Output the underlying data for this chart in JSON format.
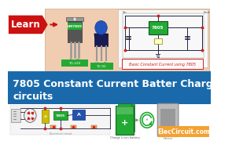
{
  "bg_color": "#ffffff",
  "top_panel_bg": "#f0ccb0",
  "title_bar_bg": "#1a6aab",
  "title_text_line1": "7805 Constant Current Batter Charger",
  "title_text_line2": "circuits",
  "title_color": "#ffffff",
  "title_fontsize": 9.0,
  "learn_label": "Learn",
  "learn_bg": "#cc1111",
  "learn_text_color": "#ffffff",
  "learn_fontsize": 8.5,
  "brand_text": "ElecCircuit.com",
  "brand_bg": "#f5a030",
  "brand_text_color": "#ffffff",
  "brand_fontsize": 5.5,
  "circuit_label_7805": "Basic Constant Current using 7805",
  "circuit_label_color": "#cc2222",
  "ic_green": "#22aa33",
  "wire_color": "#222244",
  "red_dot": "#cc2222",
  "transistor_dark": "#444444",
  "transistor_blue": "#2244bb",
  "green_label_bg": "#22aa33",
  "right_panel_bg": "#f8f8f8",
  "bottom_bg": "#ffffff",
  "battery_green": "#22aa33",
  "battery_dark_green": "#116622",
  "charge_arrow_color": "#22aa33",
  "device_gray": "#bbbbbb",
  "device_inner": "#999999"
}
